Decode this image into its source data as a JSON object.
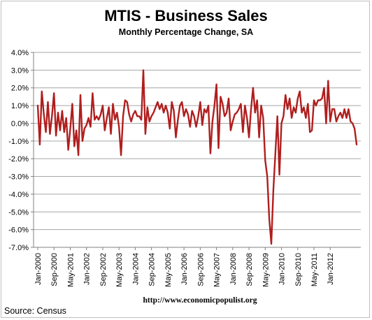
{
  "chart_data": {
    "type": "line",
    "title": "MTIS - Business Sales",
    "subtitle": "Monthly Percentage Change, SA",
    "source": "Source:  Census",
    "url": "http://www.economicpopulist.org",
    "series_color": "#b01e1e",
    "ylim": [
      -7.0,
      4.0
    ],
    "y_ticks": [
      "4.0%",
      "3.0%",
      "2.0%",
      "1.0%",
      "0.0%",
      "-1.0%",
      "-2.0%",
      "-3.0%",
      "-4.0%",
      "-5.0%",
      "-6.0%",
      "-7.0%"
    ],
    "x_ticks": [
      "Jan-2000",
      "Sep-2000",
      "May-2001",
      "Jan-2002",
      "Sep-2002",
      "May-2003",
      "Jan-2004",
      "Sep-2004",
      "May-2005",
      "Jan-2006",
      "Sep-2006",
      "May-2007",
      "Jan-2008",
      "Sep-2008",
      "May-2009",
      "Jan-2010",
      "Sep-2010",
      "May-2011",
      "Jan-2012"
    ],
    "grid": "horizontal",
    "series": [
      {
        "values": [
          1.0,
          -1.2,
          1.8,
          0.5,
          -0.5,
          1.2,
          -0.6,
          0.4,
          1.7,
          -0.7,
          0.6,
          -0.4,
          0.7,
          -0.5,
          0.3,
          -1.5,
          -0.3,
          1.1,
          -1.3,
          -0.4,
          -1.8,
          1.6,
          -1.0,
          -0.3,
          -0.1,
          0.3,
          -0.2,
          1.7,
          0.2,
          0.4,
          0.2,
          0.5,
          1.0,
          -0.4,
          0.3,
          0.9,
          -0.6,
          1.1,
          0.2,
          0.6,
          -0.2,
          -1.8,
          0.4,
          1.3,
          1.2,
          0.5,
          0.1,
          0.5,
          0.7,
          0.4,
          0.4,
          0.2,
          3.0,
          -0.6,
          0.9,
          0.1,
          0.4,
          0.6,
          0.9,
          1.2,
          0.8,
          1.1,
          0.6,
          1.0,
          0.6,
          -0.3,
          1.2,
          0.7,
          -0.8,
          0.2,
          1.0,
          1.2,
          0.4,
          0.8,
          0.5,
          -0.2,
          0.7,
          0.4,
          -0.2,
          0.4,
          1.2,
          -0.1,
          0.8,
          0.6,
          1.0,
          -1.7,
          0.1,
          1.0,
          2.2,
          -1.4,
          1.5,
          1.1,
          0.4,
          0.6,
          1.4,
          -0.4,
          0.1,
          0.5,
          0.6,
          0.8,
          1.1,
          -0.5,
          1.0,
          0.3,
          -0.8,
          0.8,
          2.0,
          0.6,
          1.3,
          -0.8,
          1.0,
          0.3,
          -2.1,
          -3.0,
          -5.4,
          -6.8,
          -3.8,
          -1.7,
          0.4,
          -2.9,
          0.0,
          0.4,
          1.6,
          0.8,
          1.4,
          0.3,
          0.9,
          0.6,
          1.4,
          1.8,
          0.6,
          0.9,
          0.3,
          1.1,
          -0.5,
          -0.4,
          1.3,
          1.0,
          1.3,
          1.3,
          1.4,
          2.0,
          0.0,
          2.4,
          0.1,
          0.8,
          0.8,
          0.1,
          0.4,
          0.6,
          0.3,
          0.8,
          0.3,
          0.8,
          0.1,
          0.0,
          -0.3,
          -1.2
        ]
      }
    ]
  }
}
